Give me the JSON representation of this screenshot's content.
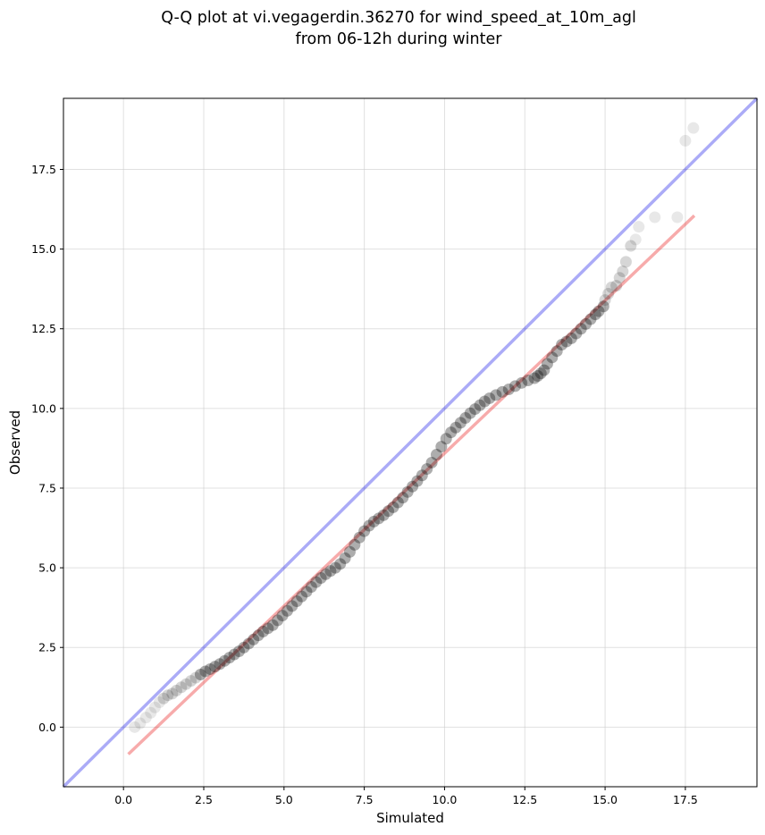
{
  "chart_data": {
    "type": "scatter",
    "title_lines": [
      "Q-Q plot at vi.vegagerdin.36270 for wind_speed_at_10m_agl",
      "from 06-12h during winter"
    ],
    "xlabel": "Simulated",
    "ylabel": "Observed",
    "xlim": [
      -1.87,
      19.73
    ],
    "ylim": [
      -1.87,
      19.73
    ],
    "x_ticks": [
      "0.0",
      "2.5",
      "5.0",
      "7.5",
      "10.0",
      "12.5",
      "15.0",
      "17.5"
    ],
    "y_ticks": [
      "0.0",
      "2.5",
      "5.0",
      "7.5",
      "10.0",
      "12.5",
      "15.0",
      "17.5"
    ],
    "grid": true,
    "legend": "none",
    "colors": {
      "points": "#000000",
      "identity_line": "#0000e6",
      "fit_line": "#e60000"
    },
    "identity_line": {
      "slope": 1,
      "intercept": 0
    },
    "fit_line": {
      "x": [
        0.15,
        17.78
      ],
      "y": [
        -0.85,
        16.05
      ]
    },
    "series": [
      {
        "x": [
          0.35,
          0.52,
          0.7,
          0.85,
          0.98,
          1.12,
          1.25,
          1.38,
          1.52,
          1.65,
          1.8,
          1.95,
          2.1,
          2.25,
          2.4,
          2.55,
          2.7,
          2.85,
          3.0,
          3.15,
          3.3,
          3.45,
          3.6,
          3.75,
          3.9,
          4.05,
          4.2,
          4.35,
          4.5,
          4.65,
          4.8,
          4.95,
          5.1,
          5.25,
          5.4,
          5.55,
          5.7,
          5.85,
          6.0,
          6.15,
          6.3,
          6.45,
          6.6,
          6.75,
          6.9,
          7.05,
          7.2,
          7.35,
          7.5,
          7.65,
          7.8,
          7.95,
          8.1,
          8.25,
          8.4,
          8.55,
          8.7,
          8.85,
          9.0,
          9.15,
          9.3,
          9.45,
          9.6,
          9.75,
          9.9,
          10.05,
          10.2,
          10.35,
          10.5,
          10.65,
          10.8,
          10.95,
          11.1,
          11.25,
          11.4,
          11.6,
          11.8,
          12.0,
          12.2,
          12.4,
          12.6,
          12.8,
          12.9,
          13.0,
          13.1,
          13.2,
          13.35,
          13.5,
          13.65,
          13.8,
          13.95,
          14.1,
          14.25,
          14.4,
          14.55,
          14.7,
          14.8,
          14.95,
          15.0,
          15.1,
          15.2,
          15.35,
          15.45,
          15.55,
          15.65,
          15.8,
          15.95,
          16.05,
          16.55,
          17.25,
          17.5,
          17.75
        ],
        "y": [
          0.0,
          0.12,
          0.3,
          0.45,
          0.62,
          0.78,
          0.9,
          1.0,
          1.05,
          1.15,
          1.25,
          1.35,
          1.45,
          1.55,
          1.65,
          1.75,
          1.82,
          1.9,
          1.98,
          2.08,
          2.18,
          2.28,
          2.38,
          2.5,
          2.62,
          2.75,
          2.88,
          3.0,
          3.1,
          3.2,
          3.35,
          3.5,
          3.65,
          3.8,
          3.95,
          4.1,
          4.25,
          4.4,
          4.55,
          4.68,
          4.8,
          4.9,
          5.0,
          5.12,
          5.3,
          5.5,
          5.72,
          5.95,
          6.15,
          6.32,
          6.45,
          6.55,
          6.65,
          6.78,
          6.9,
          7.05,
          7.2,
          7.38,
          7.55,
          7.72,
          7.9,
          8.1,
          8.3,
          8.55,
          8.8,
          9.05,
          9.25,
          9.4,
          9.55,
          9.7,
          9.85,
          9.98,
          10.1,
          10.22,
          10.32,
          10.42,
          10.52,
          10.6,
          10.7,
          10.8,
          10.88,
          10.95,
          11.02,
          11.1,
          11.2,
          11.4,
          11.6,
          11.8,
          12.0,
          12.1,
          12.2,
          12.35,
          12.5,
          12.65,
          12.8,
          12.95,
          13.05,
          13.2,
          13.4,
          13.6,
          13.8,
          13.85,
          14.1,
          14.3,
          14.6,
          15.1,
          15.3,
          15.7,
          16.0,
          16.0,
          18.4,
          18.8
        ]
      }
    ]
  }
}
